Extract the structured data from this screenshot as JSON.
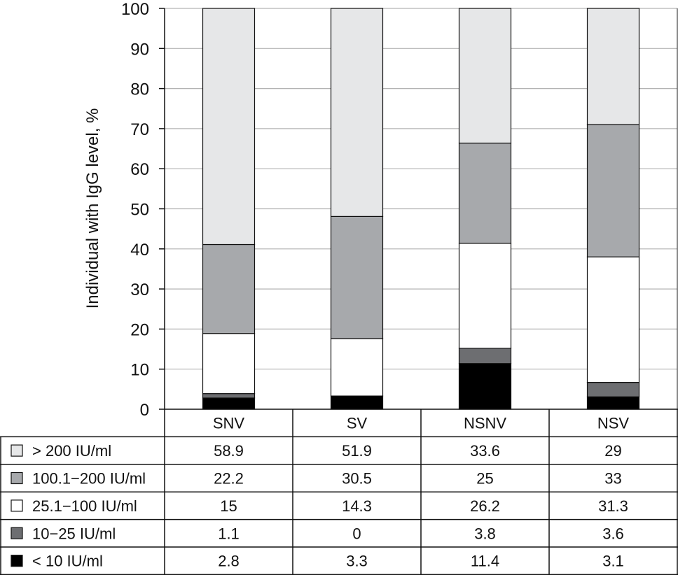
{
  "chart_data": {
    "type": "bar",
    "stacked": true,
    "title": "",
    "xlabel": "",
    "ylabel": "Individual with IgG level, %",
    "ylim": [
      0,
      100
    ],
    "yticks": [
      "0",
      "10",
      "20",
      "30",
      "40",
      "50",
      "60",
      "70",
      "80",
      "90",
      "100"
    ],
    "grid": true,
    "categories": [
      "SNV",
      "SV",
      "NSNV",
      "NSV"
    ],
    "series": [
      {
        "name": "< 10 IU/ml",
        "color": "#000000",
        "values": [
          2.8,
          3.3,
          11.4,
          3.1
        ],
        "labels": [
          "2.8",
          "3.3",
          "11.4",
          "3.1"
        ]
      },
      {
        "name": "10−25 IU/ml",
        "color": "#6d6e71",
        "values": [
          1.1,
          0,
          3.8,
          3.6
        ],
        "labels": [
          "1.1",
          "0",
          "3.8",
          "3.6"
        ]
      },
      {
        "name": "25.1−100 IU/ml",
        "color": "#ffffff",
        "values": [
          15,
          14.3,
          26.2,
          31.3
        ],
        "labels": [
          "15",
          "14.3",
          "26.2",
          "31.3"
        ]
      },
      {
        "name": "100.1−200 IU/ml",
        "color": "#a7a9ac",
        "values": [
          22.2,
          30.5,
          25,
          33
        ],
        "labels": [
          "22.2",
          "30.5",
          "25",
          "33"
        ]
      },
      {
        "name": "> 200 IU/ml",
        "color": "#e6e7e8",
        "values": [
          58.9,
          51.9,
          33.6,
          29
        ],
        "labels": [
          "58.9",
          "51.9",
          "33.6",
          "29"
        ]
      }
    ],
    "table_order": [
      "> 200 IU/ml",
      "100.1−200 IU/ml",
      "25.1−100 IU/ml",
      "10−25 IU/ml",
      "< 10 IU/ml"
    ]
  }
}
